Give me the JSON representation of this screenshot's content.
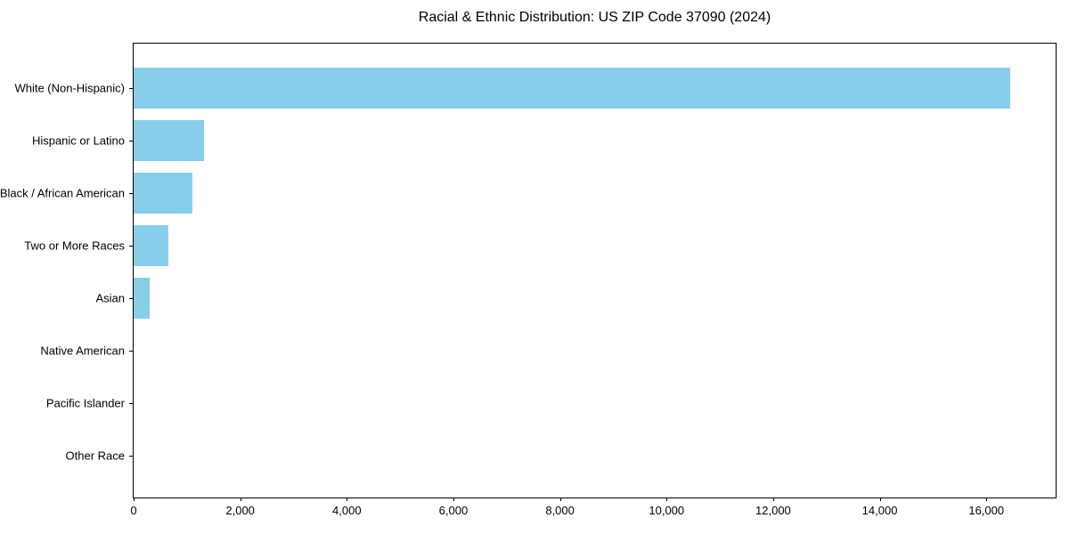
{
  "chart_data": {
    "type": "bar",
    "orientation": "horizontal",
    "title": "Racial & Ethnic Distribution: US ZIP Code 37090 (2024)",
    "categories": [
      "White (Non-Hispanic)",
      "Hispanic or Latino",
      "Black / African American",
      "Two or More Races",
      "Asian",
      "Native American",
      "Pacific Islander",
      "Other Race"
    ],
    "values": [
      16450,
      1320,
      1100,
      650,
      295,
      0,
      0,
      0
    ],
    "xlabel": "",
    "ylabel": "",
    "xlim": [
      0,
      17300
    ],
    "xticks": [
      0,
      2000,
      4000,
      6000,
      8000,
      10000,
      12000,
      14000,
      16000
    ],
    "xtick_labels": [
      "0",
      "2,000",
      "4,000",
      "6,000",
      "8,000",
      "10,000",
      "12,000",
      "14,000",
      "16,000"
    ],
    "bar_color": "#87CEEB",
    "grid": false,
    "legend": false
  }
}
